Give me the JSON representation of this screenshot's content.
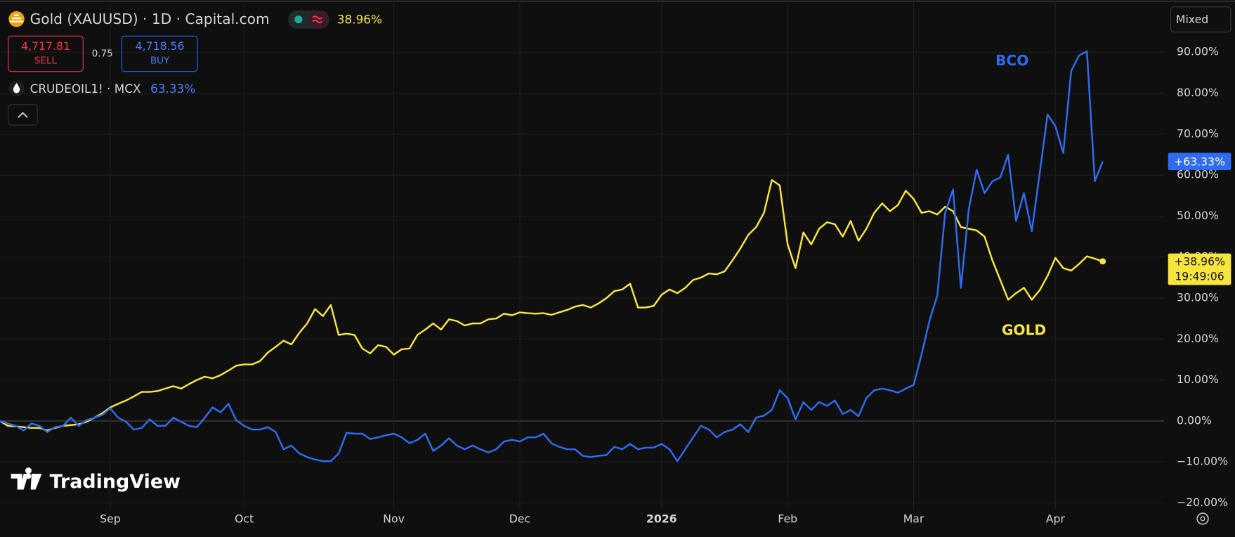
{
  "header": {
    "title": "Gold (XAUUSD) · 1D · Capital.com",
    "change": "38.96%",
    "sell_price": "4,717.81",
    "sell_label": "SELL",
    "spread": "0.75",
    "buy_price": "4,718.56",
    "buy_label": "BUY",
    "compare_symbol": "CRUDEOIL1! · MCX",
    "compare_change": "63.33%",
    "scale_mode": "Mixed",
    "logo": "TradingView"
  },
  "chart_data": {
    "type": "line",
    "grid": true,
    "categories": [
      null,
      null,
      null,
      null,
      null,
      null,
      null,
      null,
      null,
      null,
      null,
      null,
      null,
      null,
      "Sep",
      null,
      null,
      null,
      null,
      null,
      null,
      null,
      null,
      null,
      null,
      null,
      null,
      null,
      null,
      null,
      null,
      "Oct",
      null,
      null,
      null,
      null,
      null,
      null,
      null,
      null,
      null,
      null,
      null,
      null,
      null,
      null,
      null,
      null,
      null,
      null,
      "Nov",
      null,
      null,
      null,
      null,
      null,
      null,
      null,
      null,
      null,
      null,
      null,
      null,
      null,
      null,
      null,
      "Dec",
      null,
      null,
      null,
      null,
      null,
      null,
      null,
      null,
      null,
      null,
      null,
      null,
      null,
      null,
      null,
      null,
      null,
      "2026",
      null,
      null,
      null,
      null,
      null,
      null,
      null,
      null,
      null,
      null,
      null,
      null,
      null,
      null,
      null,
      "Feb",
      null,
      null,
      null,
      null,
      null,
      null,
      null,
      null,
      null,
      null,
      null,
      null,
      null,
      null,
      null,
      "Mar",
      null,
      null,
      null,
      null,
      null,
      null,
      null,
      null,
      null,
      null,
      null,
      null,
      null,
      null,
      null,
      null,
      null,
      "Apr",
      null,
      null,
      null,
      null,
      null,
      null
    ],
    "series": [
      {
        "name": "GOLD",
        "color": "#f7e43d",
        "price_tag": "+38.96%",
        "time_tag": "19:49:06",
        "values": [
          0,
          -1.2,
          -1.3,
          -1.5,
          -1.7,
          -1.7,
          -2.3,
          -1.7,
          -1.2,
          -1,
          -0.8,
          -0.2,
          0.8,
          1.9,
          3.3,
          4.2,
          5,
          6,
          7.1,
          7.1,
          7.3,
          7.9,
          8.5,
          7.9,
          9,
          10,
          10.8,
          10.4,
          11.2,
          12.3,
          13.5,
          13.8,
          13.8,
          14.6,
          16.7,
          18.1,
          19.6,
          18.7,
          21.5,
          23.8,
          27.3,
          25.6,
          28.3,
          21,
          21.3,
          21,
          17.7,
          16.5,
          18.5,
          18.1,
          16.2,
          17.5,
          17.7,
          21,
          22.3,
          23.8,
          22.3,
          24.8,
          24.4,
          23.3,
          23.8,
          23.8,
          24.8,
          25,
          26.2,
          25.8,
          26.5,
          26.3,
          26.2,
          26.3,
          25.9,
          26.5,
          27.1,
          27.9,
          28.3,
          27.7,
          28.7,
          30,
          31.7,
          32.1,
          33.5,
          27.7,
          27.7,
          28.1,
          30.8,
          32.1,
          31.2,
          32.5,
          34.4,
          35,
          36,
          35.8,
          36.5,
          39.2,
          42.1,
          45.4,
          47.3,
          50.8,
          58.8,
          57.5,
          43.1,
          37.3,
          46,
          43.1,
          46.9,
          48.5,
          48,
          45,
          48.8,
          44,
          46.9,
          50.8,
          53.1,
          51.2,
          52.7,
          56.2,
          54.2,
          50.8,
          51.2,
          50.4,
          52.3,
          51.2,
          47.3,
          46.9,
          46.5,
          45,
          39.2,
          34.4,
          29.6,
          31.2,
          32.5,
          29.6,
          31.9,
          35.4,
          39.8,
          37.3,
          36.7,
          38.3,
          40.2,
          39.6,
          38.96
        ]
      },
      {
        "name": "BCO",
        "color": "#2f6bf0",
        "price_tag": "+63.33%",
        "values": [
          0,
          -0.6,
          -1.2,
          -2.3,
          -0.6,
          -1.2,
          -2.7,
          -1.5,
          -1.2,
          0.8,
          -1.2,
          0.2,
          0.8,
          1.5,
          3.1,
          0.8,
          -0.2,
          -2.1,
          -1.7,
          0.4,
          -1.2,
          -1.2,
          0.8,
          -0.2,
          -1.2,
          -1.5,
          0.8,
          3.3,
          2.1,
          4.2,
          0.2,
          -1.2,
          -2.1,
          -2.1,
          -1.5,
          -2.7,
          -6.9,
          -6,
          -7.9,
          -8.8,
          -9.4,
          -9.8,
          -9.8,
          -7.9,
          -2.9,
          -3.1,
          -3.1,
          -4.4,
          -4,
          -3.5,
          -3.1,
          -4,
          -5.4,
          -4.6,
          -3.1,
          -7.3,
          -6,
          -4.2,
          -6,
          -6.9,
          -6,
          -6.9,
          -7.7,
          -6.9,
          -5,
          -4.6,
          -5,
          -4,
          -4,
          -3.1,
          -5.4,
          -6.3,
          -6.9,
          -6.9,
          -8.5,
          -8.8,
          -8.5,
          -8.3,
          -6.3,
          -6.9,
          -5.6,
          -6.9,
          -6.5,
          -6.5,
          -5.6,
          -6.9,
          -9.8,
          -6.9,
          -4,
          -1.2,
          -2.1,
          -4,
          -2.7,
          -2.1,
          -0.8,
          -2.7,
          0.8,
          1.3,
          2.7,
          7.5,
          5.6,
          0.4,
          4.6,
          2.7,
          4.6,
          3.7,
          5,
          1.7,
          2.7,
          1.2,
          5.6,
          7.5,
          7.9,
          7.5,
          6.9,
          7.9,
          8.8,
          16.2,
          24.4,
          30.6,
          50.8,
          56.5,
          32.5,
          51.7,
          61.3,
          55.6,
          58.5,
          59.4,
          65,
          48.8,
          55.6,
          46.3,
          60.4,
          74.8,
          71.9,
          65.4,
          85.4,
          89.2,
          90.2,
          58.5,
          63.33
        ]
      }
    ],
    "ylim": [
      -21.5,
      101
    ],
    "yticks": [
      {
        "value": -20,
        "label": "−20.00%"
      },
      {
        "value": -10,
        "label": "−10.00%"
      },
      {
        "value": 0,
        "label": "0.00%"
      },
      {
        "value": 10,
        "label": "10.00%"
      },
      {
        "value": 20,
        "label": "20.00%"
      },
      {
        "value": 30,
        "label": "30.00%"
      },
      {
        "value": 40,
        "label": "40.00%"
      },
      {
        "value": 50,
        "label": "50.00%"
      },
      {
        "value": 60,
        "label": "60.00%"
      },
      {
        "value": 70,
        "label": "70.00%"
      },
      {
        "value": 80,
        "label": "80.00%"
      },
      {
        "value": 90,
        "label": "90.00%"
      }
    ]
  }
}
